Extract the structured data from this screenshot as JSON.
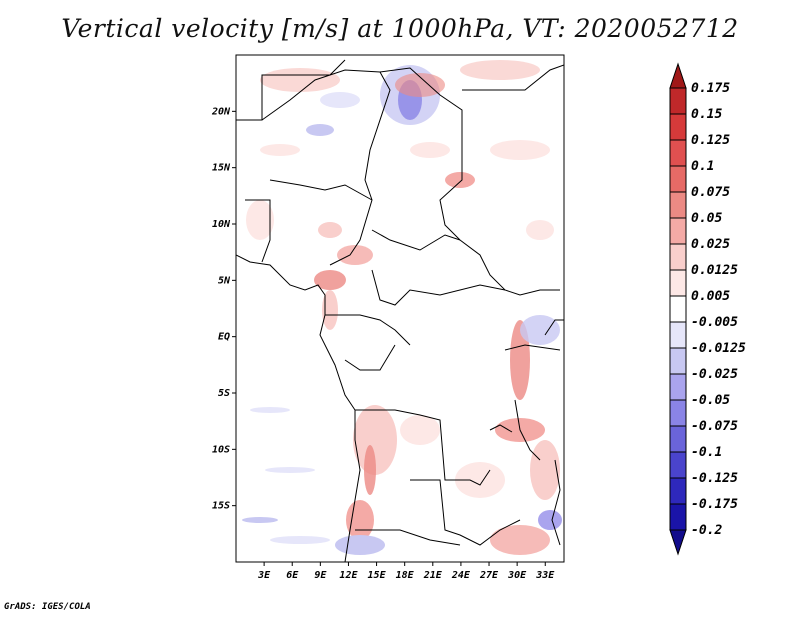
{
  "title": "Vertical velocity [m/s] at 1000hPa, VT: 2020052712",
  "credit": "GrADS: IGES/COLA",
  "map": {
    "lat_labels": [
      "20N",
      "15N",
      "10N",
      "5N",
      "EQ",
      "5S",
      "10S",
      "15S"
    ],
    "lat_values": [
      20,
      15,
      10,
      5,
      0,
      -5,
      -10,
      -15
    ],
    "lon_labels": [
      "3E",
      "6E",
      "9E",
      "12E",
      "15E",
      "18E",
      "21E",
      "24E",
      "27E",
      "30E",
      "33E"
    ],
    "lon_values": [
      3,
      6,
      9,
      12,
      15,
      18,
      21,
      24,
      27,
      30,
      33
    ],
    "lat_range": [
      -20,
      25
    ],
    "lon_range": [
      0,
      35
    ]
  },
  "colorbar": {
    "labels": [
      "0.175",
      "0.15",
      "0.125",
      "0.1",
      "0.075",
      "0.05",
      "0.025",
      "0.0125",
      "0.005",
      "-0.005",
      "-0.0125",
      "-0.025",
      "-0.05",
      "-0.075",
      "-0.1",
      "-0.125",
      "-0.175",
      "-0.2"
    ],
    "colors": [
      "#a01818",
      "#c0282a",
      "#d63a3a",
      "#e05050",
      "#e66a66",
      "#ec8a84",
      "#f4aaa6",
      "#f9cfcc",
      "#fde8e6",
      "#ffffff",
      "#e6e6fa",
      "#c8c8f2",
      "#aaa4ee",
      "#8a84e6",
      "#6a64da",
      "#4a44cc",
      "#2e28bc",
      "#1a14a8",
      "#120c8c"
    ]
  }
}
